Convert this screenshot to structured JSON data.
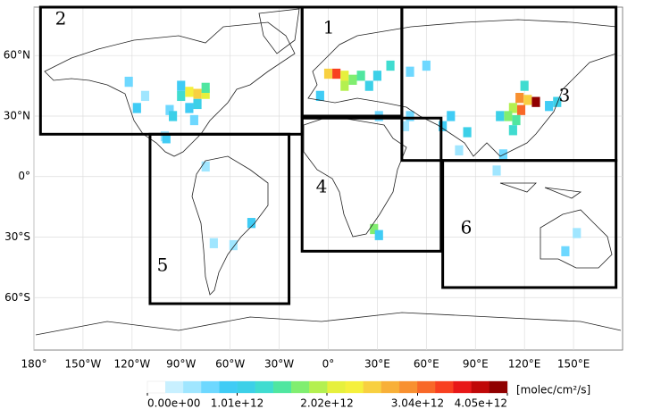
{
  "map": {
    "lonlim": [
      -180,
      180
    ],
    "latlim": [
      -86,
      84
    ],
    "lon_ticks": [
      {
        "value": -180,
        "label": "180°"
      },
      {
        "value": -150,
        "label": "150°W"
      },
      {
        "value": -120,
        "label": "120°W"
      },
      {
        "value": -90,
        "label": "90°W"
      },
      {
        "value": -60,
        "label": "60°W"
      },
      {
        "value": -30,
        "label": "30°W"
      },
      {
        "value": 0,
        "label": "0°"
      },
      {
        "value": 30,
        "label": "30°E"
      },
      {
        "value": 60,
        "label": "60°E"
      },
      {
        "value": 90,
        "label": "90°E"
      },
      {
        "value": 120,
        "label": "120°E"
      },
      {
        "value": 150,
        "label": "150°E"
      }
    ],
    "lat_ticks": [
      {
        "value": 60,
        "label": "60°N"
      },
      {
        "value": 30,
        "label": "30°N"
      },
      {
        "value": 0,
        "label": "0°"
      },
      {
        "value": -30,
        "label": "30°S"
      },
      {
        "value": -60,
        "label": "60°S"
      }
    ],
    "regions": [
      {
        "label": "1",
        "lon": [
          -16,
          45
        ],
        "lat": [
          30,
          84
        ]
      },
      {
        "label": "2",
        "lon": [
          -176,
          -16
        ],
        "lat": [
          21,
          84
        ]
      },
      {
        "label": "3",
        "lon": [
          45,
          176
        ],
        "lat": [
          8,
          84
        ]
      },
      {
        "label": "4",
        "lon": [
          -16,
          69
        ],
        "lat": [
          -37,
          29
        ]
      },
      {
        "label": "5",
        "lon": [
          -109,
          -24
        ],
        "lat": [
          -63,
          21
        ]
      },
      {
        "label": "6",
        "lon": [
          70,
          176
        ],
        "lat": [
          -55,
          8
        ]
      }
    ],
    "cells": {
      "lon": [
        -122,
        -117,
        -112,
        -97,
        -95,
        -90,
        -85,
        -80,
        -75,
        -80,
        -85,
        -82,
        -75,
        -90,
        -100,
        -99,
        -75,
        -47,
        -58,
        -70,
        0,
        5,
        10,
        15,
        20,
        -5,
        10,
        25,
        30,
        38,
        50,
        60,
        50,
        70,
        75,
        85,
        80,
        117,
        122,
        127,
        113,
        118,
        110,
        115,
        113,
        105,
        140,
        135,
        120,
        107,
        103,
        28,
        31,
        145,
        152,
        31,
        47
      ],
      "lat": [
        47,
        34,
        40,
        33,
        30,
        40,
        42,
        41,
        41,
        36,
        34,
        28,
        44,
        45,
        20,
        19,
        5,
        -23,
        -34,
        -33,
        51,
        51,
        50,
        48,
        50,
        40,
        45,
        45,
        50,
        55,
        52,
        55,
        30,
        25,
        30,
        22,
        13,
        39,
        38,
        37,
        34,
        33,
        30,
        28,
        23,
        30,
        37,
        35,
        45,
        11,
        3,
        -26,
        -29,
        -37,
        -28,
        30,
        25
      ],
      "values": [
        800000000000.0,
        1000000000000.0,
        500000000000.0,
        700000000000.0,
        1100000000000.0,
        1300000000000.0,
        2300000000000.0,
        2500000000000.0,
        2200000000000.0,
        1200000000000.0,
        900000000000.0,
        800000000000.0,
        1500000000000.0,
        1000000000000.0,
        600000000000.0,
        1000000000000.0,
        500000000000.0,
        900000000000.0,
        600000000000.0,
        500000000000.0,
        2600000000000.0,
        3300000000000.0,
        2200000000000.0,
        1800000000000.0,
        1600000000000.0,
        1000000000000.0,
        1900000000000.0,
        1200000000000.0,
        1100000000000.0,
        1300000000000.0,
        800000000000.0,
        700000000000.0,
        800000000000.0,
        900000000000.0,
        1000000000000.0,
        1100000000000.0,
        600000000000.0,
        3000000000000.0,
        2500000000000.0,
        4000000000000.0,
        2000000000000.0,
        3200000000000.0,
        1800000000000.0,
        1500000000000.0,
        1400000000000.0,
        1200000000000.0,
        1100000000000.0,
        900000000000.0,
        1400000000000.0,
        700000000000.0,
        500000000000.0,
        1800000000000.0,
        900000000000.0,
        800000000000.0,
        500000000000.0,
        700000000000.0,
        600000000000.0
      ]
    },
    "colorbar": {
      "range": [
        0,
        4050000000000.0
      ],
      "colors": [
        "#ffffff",
        "#c8f0ff",
        "#a0e6ff",
        "#6ed8ff",
        "#40ccf5",
        "#3cd0e8",
        "#40dcd0",
        "#50e6a0",
        "#80ee70",
        "#b4f050",
        "#e6f03c",
        "#f5f03c",
        "#f8d040",
        "#f8b038",
        "#f89030",
        "#f86828",
        "#f84020",
        "#e81818",
        "#c00808",
        "#900000"
      ],
      "ticks": [
        {
          "value": 0,
          "label": "0.00e+00"
        },
        {
          "value": 1010000000000.0,
          "label": "1.01e+12"
        },
        {
          "value": 2020000000000.0,
          "label": "2.02e+12"
        },
        {
          "value": 3040000000000.0,
          "label": "3.04e+12"
        },
        {
          "value": 4050000000000.0,
          "label": "4.05e+12"
        }
      ],
      "unit": "[molec/cm²/s]"
    }
  }
}
